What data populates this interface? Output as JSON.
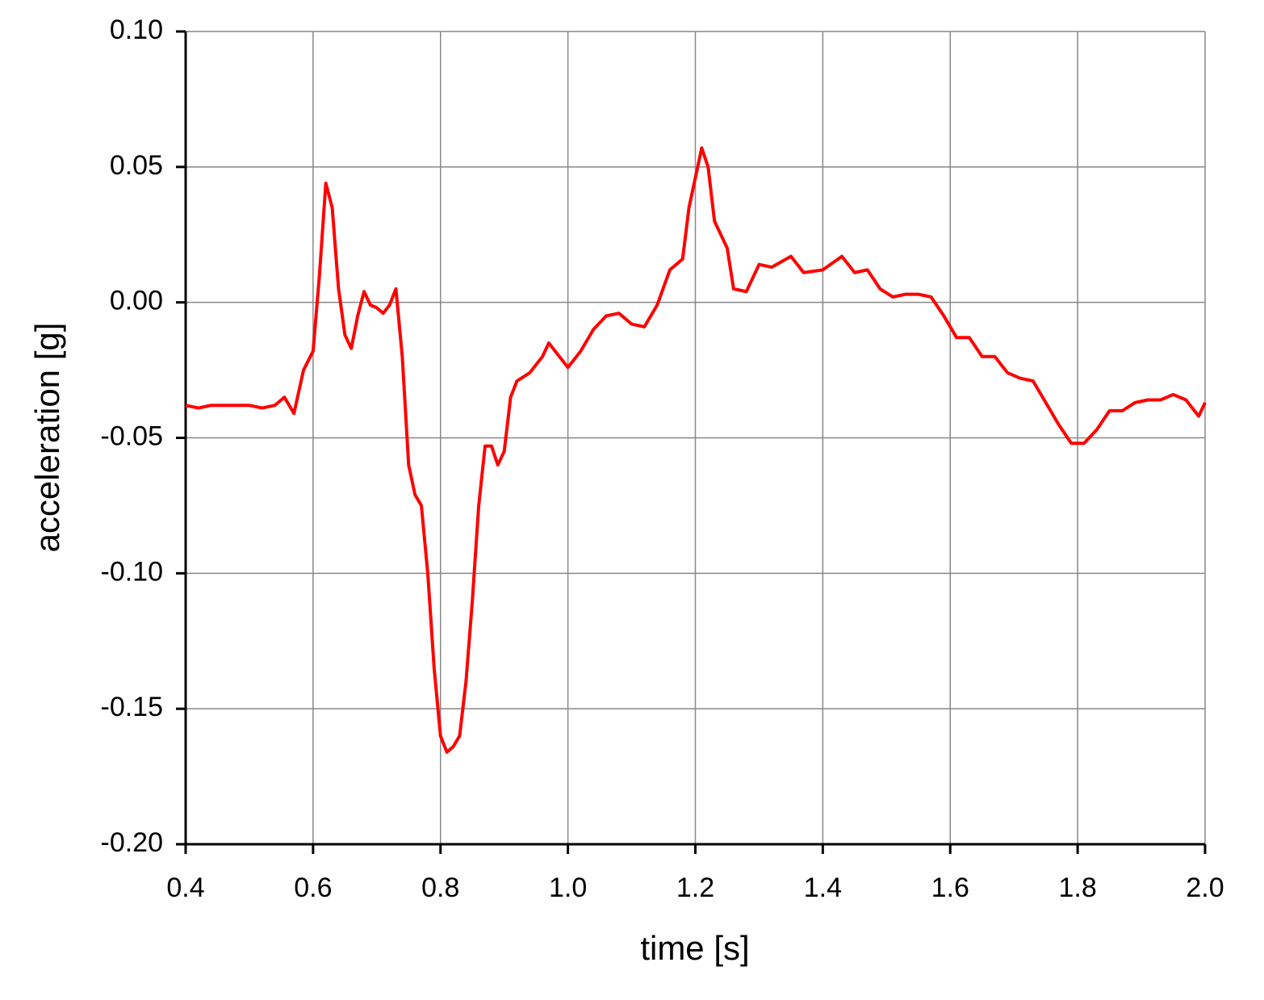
{
  "chart_data": {
    "type": "line",
    "x_label": "time [s]",
    "y_label": "acceleration [g]",
    "xlim": [
      0.4,
      2.0
    ],
    "ylim": [
      -0.2,
      0.1
    ],
    "xticks": [
      0.4,
      0.6,
      0.8,
      {
        "value": 1.0,
        "label": "1.0"
      },
      1.2,
      1.4,
      1.6,
      1.8,
      {
        "value": 2.0,
        "label": "2.0"
      }
    ],
    "yticks": [
      {
        "value": -0.2,
        "label": "-0.20"
      },
      -0.15,
      {
        "value": -0.1,
        "label": "-0.10"
      },
      -0.05,
      {
        "value": 0,
        "label": "0.00"
      },
      0.05,
      {
        "value": 0.1,
        "label": "0.10"
      }
    ],
    "grid": true,
    "series": [
      {
        "color": "#ff0000",
        "x": [
          0.4,
          0.42,
          0.44,
          0.46,
          0.48,
          0.5,
          0.52,
          0.54,
          0.555,
          0.57,
          0.585,
          0.6,
          0.61,
          0.62,
          0.63,
          0.64,
          0.65,
          0.66,
          0.67,
          0.68,
          0.69,
          0.7,
          0.71,
          0.72,
          0.73,
          0.74,
          0.75,
          0.76,
          0.77,
          0.78,
          0.79,
          0.8,
          0.81,
          0.82,
          0.83,
          0.84,
          0.85,
          0.86,
          0.87,
          0.88,
          0.89,
          0.9,
          0.91,
          0.92,
          0.94,
          0.96,
          0.97,
          0.98,
          1.0,
          1.02,
          1.04,
          1.06,
          1.08,
          1.1,
          1.12,
          1.14,
          1.16,
          1.18,
          1.19,
          1.21,
          1.22,
          1.23,
          1.25,
          1.26,
          1.28,
          1.3,
          1.32,
          1.35,
          1.37,
          1.4,
          1.43,
          1.45,
          1.47,
          1.49,
          1.51,
          1.53,
          1.55,
          1.57,
          1.59,
          1.61,
          1.63,
          1.65,
          1.67,
          1.69,
          1.71,
          1.73,
          1.75,
          1.77,
          1.79,
          1.81,
          1.83,
          1.85,
          1.87,
          1.89,
          1.91,
          1.93,
          1.95,
          1.97,
          1.99,
          2.0
        ],
        "values": [
          -0.038,
          -0.039,
          -0.038,
          -0.038,
          -0.038,
          -0.038,
          -0.039,
          -0.038,
          -0.035,
          -0.041,
          -0.025,
          -0.018,
          0.01,
          0.044,
          0.035,
          0.005,
          -0.012,
          -0.017,
          -0.005,
          0.004,
          -0.001,
          -0.002,
          -0.004,
          -0.001,
          0.005,
          -0.02,
          -0.06,
          -0.071,
          -0.075,
          -0.1,
          -0.135,
          -0.16,
          -0.166,
          -0.164,
          -0.16,
          -0.14,
          -0.11,
          -0.075,
          -0.053,
          -0.053,
          -0.06,
          -0.055,
          -0.035,
          -0.029,
          -0.026,
          -0.02,
          -0.015,
          -0.018,
          -0.024,
          -0.018,
          -0.01,
          -0.005,
          -0.004,
          -0.008,
          -0.009,
          -0.001,
          0.012,
          0.016,
          0.035,
          0.057,
          0.05,
          0.03,
          0.02,
          0.005,
          0.004,
          0.014,
          0.013,
          0.017,
          0.011,
          0.012,
          0.017,
          0.011,
          0.012,
          0.005,
          0.002,
          0.003,
          0.003,
          0.002,
          -0.005,
          -0.013,
          -0.013,
          -0.02,
          -0.02,
          -0.026,
          -0.028,
          -0.029,
          -0.037,
          -0.045,
          -0.052,
          -0.052,
          -0.047,
          -0.04,
          -0.04,
          -0.037,
          -0.036,
          -0.036,
          -0.034,
          -0.036,
          -0.042,
          -0.037
        ]
      }
    ]
  }
}
